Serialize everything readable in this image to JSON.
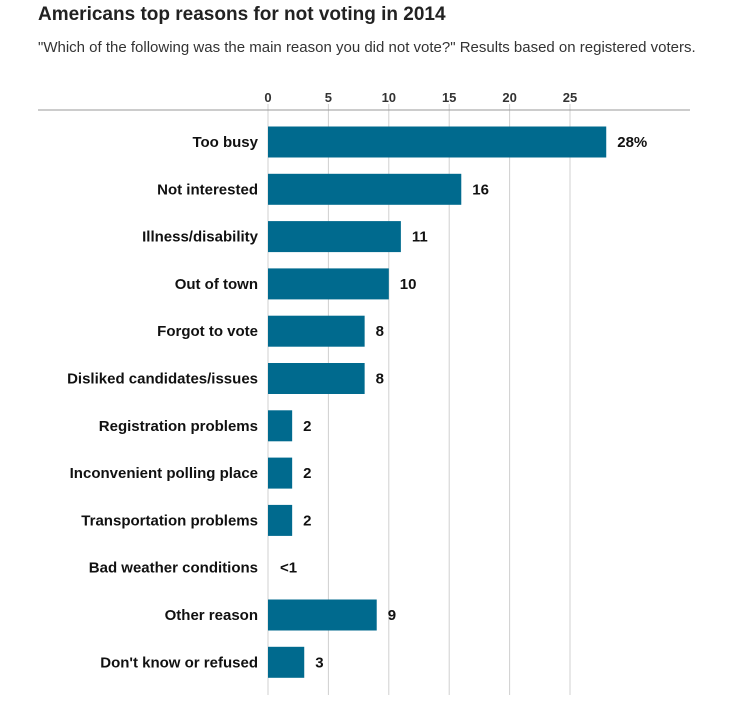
{
  "header": {
    "title": "Americans top reasons for not voting in 2014",
    "subtitle": "\"Which of the following was the main reason you did not vote?\" Results based on registered voters."
  },
  "colors": {
    "bar": "#006a8e",
    "grid": "#d0d0d0",
    "axis_line": "#999999",
    "text": "#111111"
  },
  "chart_data": {
    "type": "bar",
    "orientation": "horizontal",
    "title": "Americans top reasons for not voting in 2014",
    "subtitle": "\"Which of the following was the main reason you did not vote?\" Results based on registered voters.",
    "xlabel": "",
    "ylabel": "",
    "xlim": [
      0,
      28
    ],
    "x_ticks": [
      0,
      5,
      10,
      15,
      20,
      25
    ],
    "x_axis_position": "top",
    "grid": true,
    "legend": "none",
    "categories": [
      "Too busy",
      "Not interested",
      "Illness/disability",
      "Out of town",
      "Forgot to vote",
      "Disliked candidates/issues",
      "Registration problems",
      "Inconvenient polling place",
      "Transportation problems",
      "Bad weather conditions",
      "Other reason",
      "Don't know or refused"
    ],
    "values": [
      28,
      16,
      11,
      10,
      8,
      8,
      2,
      2,
      2,
      0.5,
      9,
      3
    ],
    "value_labels": [
      "28%",
      "16",
      "11",
      "10",
      "8",
      "8",
      "2",
      "2",
      "2",
      "<1",
      "9",
      "3"
    ]
  }
}
